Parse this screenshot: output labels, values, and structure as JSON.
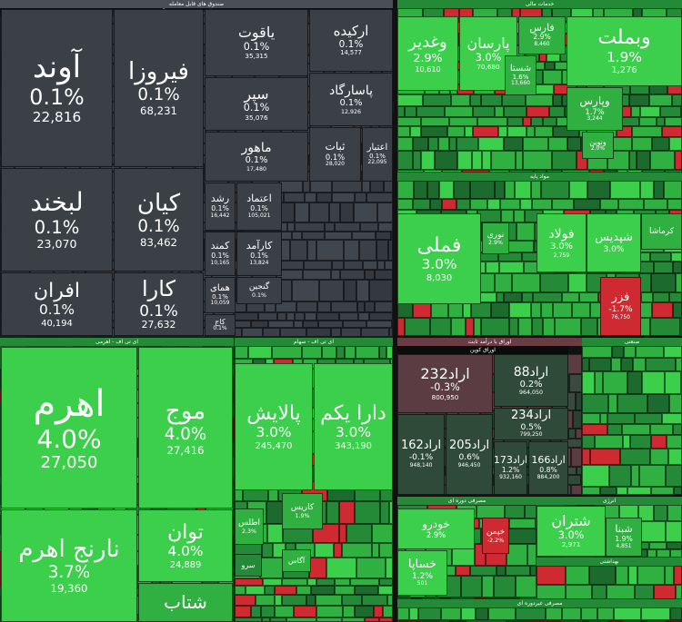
{
  "sections": [
    {
      "title": "صندوق های قابل معامله",
      "subtitle": "صندوق سرمایه گذاری در اوراق با درآمد ثابت",
      "tiles": [
        {
          "name": "آوند",
          "change": "0.1%",
          "volume": "22,816"
        },
        {
          "name": "فیروزا",
          "change": "0.1%",
          "volume": "68,231"
        },
        {
          "name": "لبخند",
          "change": "0.1%",
          "volume": "23,070"
        },
        {
          "name": "کیان",
          "change": "0.1%",
          "volume": "83,462"
        },
        {
          "name": "افران",
          "change": "0.1%",
          "volume": "40,194"
        },
        {
          "name": "کارا",
          "change": "0.1%",
          "volume": "27,632"
        },
        {
          "name": "یاقوت",
          "change": "0.1%",
          "volume": "35,315"
        },
        {
          "name": "ارکیده",
          "change": "0.1%",
          "volume": "14,577"
        },
        {
          "name": "سپر",
          "change": "0.1%",
          "volume": "35,076"
        },
        {
          "name": "پاسارگاد",
          "change": "0.1%",
          "volume": "12,926"
        },
        {
          "name": "ماهور",
          "change": "0.1%",
          "volume": "17,480"
        },
        {
          "name": "ثبات",
          "change": "0.1%",
          "volume": "28,020"
        },
        {
          "name": "اعتبار",
          "change": "0.1%",
          "volume": "22,095"
        },
        {
          "name": "رشد",
          "change": "0.1%",
          "volume": "16,442"
        },
        {
          "name": "اعتماد",
          "change": "0.1%",
          "volume": "105,021"
        },
        {
          "name": "کمند",
          "change": "0.1%",
          "volume": "10,165"
        },
        {
          "name": "کارآمد",
          "change": "0.1%",
          "volume": "13,824"
        },
        {
          "name": "همای",
          "change": "0.1%",
          "volume": "10,059"
        },
        {
          "name": "گنجین",
          "change": "0.1%"
        },
        {
          "name": "کاج",
          "change": "0.1%"
        }
      ]
    },
    {
      "title": "ای تی اف - اهرمی",
      "tiles": [
        {
          "name": "اهرم",
          "change": "4.0%",
          "volume": "27,050"
        },
        {
          "name": "موج",
          "change": "4.0%",
          "volume": "27,416"
        },
        {
          "name": "نارنج اهرم",
          "change": "3.7%",
          "volume": "19,360"
        },
        {
          "name": "توان",
          "change": "4.0%",
          "volume": "24,889"
        },
        {
          "name": "شتاب"
        }
      ]
    },
    {
      "title": "ای تی اف - سهام",
      "tiles": [
        {
          "name": "پالایش",
          "change": "3.0%",
          "volume": "245,470"
        },
        {
          "name": "دارا یکم",
          "change": "3.0%",
          "volume": "343,190"
        },
        {
          "name": "کاریس",
          "change": "1.9%"
        },
        {
          "name": "اطلس",
          "change": "2.3%"
        },
        {
          "name": "آگاس"
        },
        {
          "name": "سرو"
        }
      ]
    },
    {
      "title": "خدمات مالی",
      "tiles": [
        {
          "name": "وبملت",
          "change": "1.9%",
          "volume": "1,276"
        },
        {
          "name": "وغدیر",
          "change": "2.9%",
          "volume": "10,610"
        },
        {
          "name": "پارسان",
          "change": "3.0%",
          "volume": "70,680"
        },
        {
          "name": "فارس",
          "change": "2.9%",
          "volume": "8,460"
        },
        {
          "name": "شستا",
          "change": "1.6%",
          "volume": "13,660"
        },
        {
          "name": "وپارس",
          "change": "1.7%",
          "volume": "3,244"
        },
        {
          "name": "ونوین",
          "change": "2.0%"
        }
      ]
    },
    {
      "title": "مواد پایه",
      "tiles": [
        {
          "name": "فملی",
          "change": "3.0%",
          "volume": "8,030"
        },
        {
          "name": "فولاد",
          "change": "3.0%",
          "volume": "2,759"
        },
        {
          "name": "شپدیس",
          "change": "3.0%"
        },
        {
          "name": "فزر",
          "change": "-1.7%",
          "volume": "76,750"
        },
        {
          "name": "نوری",
          "change": "2.9%"
        },
        {
          "name": "کرماشا"
        }
      ]
    },
    {
      "title": "اوراق با درآمد ثابت",
      "subtitle": "اوراق کوپن",
      "tiles": [
        {
          "name": "اراد232",
          "change": "-0.3%",
          "volume": "800,950"
        },
        {
          "name": "اراد88",
          "change": "0.2%",
          "volume": "964,050"
        },
        {
          "name": "اراد234",
          "change": "0.5%",
          "volume": "799,250"
        },
        {
          "name": "اراد162",
          "change": "-0.1%",
          "volume": "948,140"
        },
        {
          "name": "اراد205",
          "change": "0.6%",
          "volume": "946,450"
        },
        {
          "name": "اراد173",
          "change": "1.2%",
          "volume": "932,160"
        },
        {
          "name": "اراد166",
          "change": "0.8%",
          "volume": "884,200"
        }
      ]
    },
    {
      "title": "صنعتی",
      "tiles": []
    },
    {
      "title": "مصرفی دوره ای",
      "tiles": [
        {
          "name": "خودرو",
          "change": "2.9%"
        },
        {
          "name": "خساپا",
          "change": "1.2%",
          "volume": "501"
        },
        {
          "name": "خپمن",
          "change": "-2.2%"
        }
      ]
    },
    {
      "title": "انرژی",
      "tiles": [
        {
          "name": "شتران",
          "change": "3.0%",
          "volume": "2,971"
        },
        {
          "name": "شبنا",
          "change": "1.9%",
          "volume": "4,851"
        }
      ]
    },
    {
      "title": "بهداشتی",
      "tiles": []
    },
    {
      "title": "مصرفی غیردوره ای",
      "tiles": []
    }
  ]
}
